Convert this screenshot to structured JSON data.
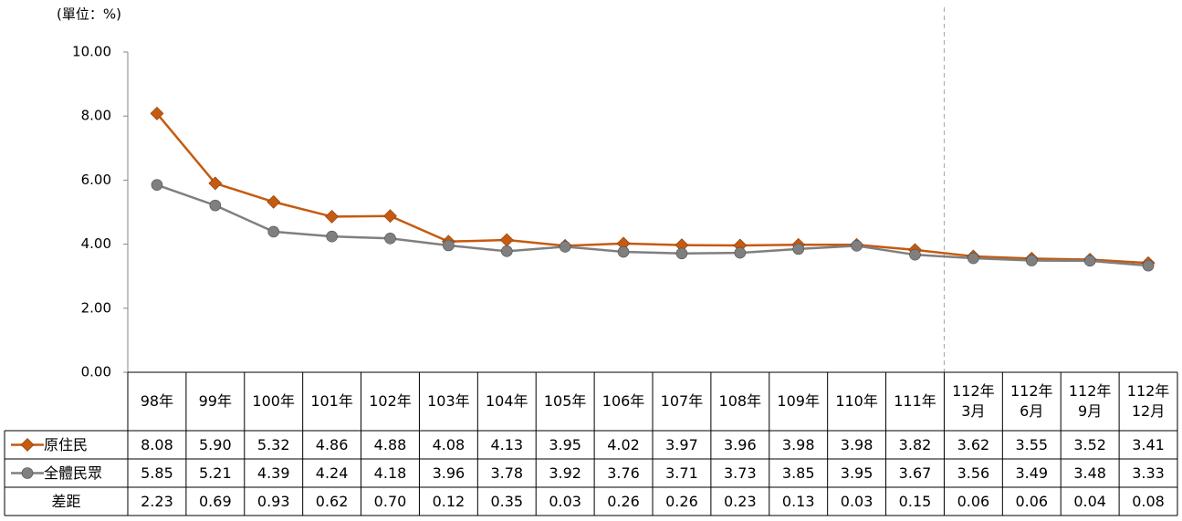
{
  "chart_data": {
    "type": "line",
    "unit_label": "(單位：%)",
    "categories": [
      "98年",
      "99年",
      "100年",
      "101年",
      "102年",
      "103年",
      "104年",
      "105年",
      "106年",
      "107年",
      "108年",
      "109年",
      "110年",
      "111年",
      "112年\n3月",
      "112年\n6月",
      "112年\n9月",
      "112年\n12月"
    ],
    "series": [
      {
        "name": "原住民",
        "color": "#c55a11",
        "marker": "diamond",
        "values": [
          8.08,
          5.9,
          5.32,
          4.86,
          4.88,
          4.08,
          4.13,
          3.95,
          4.02,
          3.97,
          3.96,
          3.98,
          3.98,
          3.82,
          3.62,
          3.55,
          3.52,
          3.41
        ],
        "value_labels": [
          "8.08",
          "5.90",
          "5.32",
          "4.86",
          "4.88",
          "4.08",
          "4.13",
          "3.95",
          "4.02",
          "3.97",
          "3.96",
          "3.98",
          "3.98",
          "3.82",
          "3.62",
          "3.55",
          "3.52",
          "3.41"
        ]
      },
      {
        "name": "全體民眾",
        "color": "#7f7f7f",
        "marker": "circle",
        "values": [
          5.85,
          5.21,
          4.39,
          4.24,
          4.18,
          3.96,
          3.78,
          3.92,
          3.76,
          3.71,
          3.73,
          3.85,
          3.95,
          3.67,
          3.56,
          3.49,
          3.48,
          3.33
        ],
        "value_labels": [
          "5.85",
          "5.21",
          "4.39",
          "4.24",
          "4.18",
          "3.96",
          "3.78",
          "3.92",
          "3.76",
          "3.71",
          "3.73",
          "3.85",
          "3.95",
          "3.67",
          "3.56",
          "3.49",
          "3.48",
          "3.33"
        ]
      }
    ],
    "difference": {
      "name": "差距",
      "values": [
        2.23,
        0.69,
        0.93,
        0.62,
        0.7,
        0.12,
        0.35,
        0.03,
        0.26,
        0.26,
        0.23,
        0.13,
        0.03,
        0.15,
        0.06,
        0.06,
        0.04,
        0.08
      ],
      "value_labels": [
        "2.23",
        "0.69",
        "0.93",
        "0.62",
        "0.70",
        "0.12",
        "0.35",
        "0.03",
        "0.26",
        "0.26",
        "0.23",
        "0.13",
        "0.03",
        "0.15",
        "0.06",
        "0.06",
        "0.04",
        "0.08"
      ]
    },
    "ylim": [
      0,
      10
    ],
    "yticks": [
      {
        "value": 0,
        "label": "0.00"
      },
      {
        "value": 2,
        "label": "2.00"
      },
      {
        "value": 4,
        "label": "4.00"
      },
      {
        "value": 6,
        "label": "6.00"
      },
      {
        "value": 8,
        "label": "8.00"
      },
      {
        "value": 10,
        "label": "10.00"
      }
    ],
    "grid": false
  }
}
